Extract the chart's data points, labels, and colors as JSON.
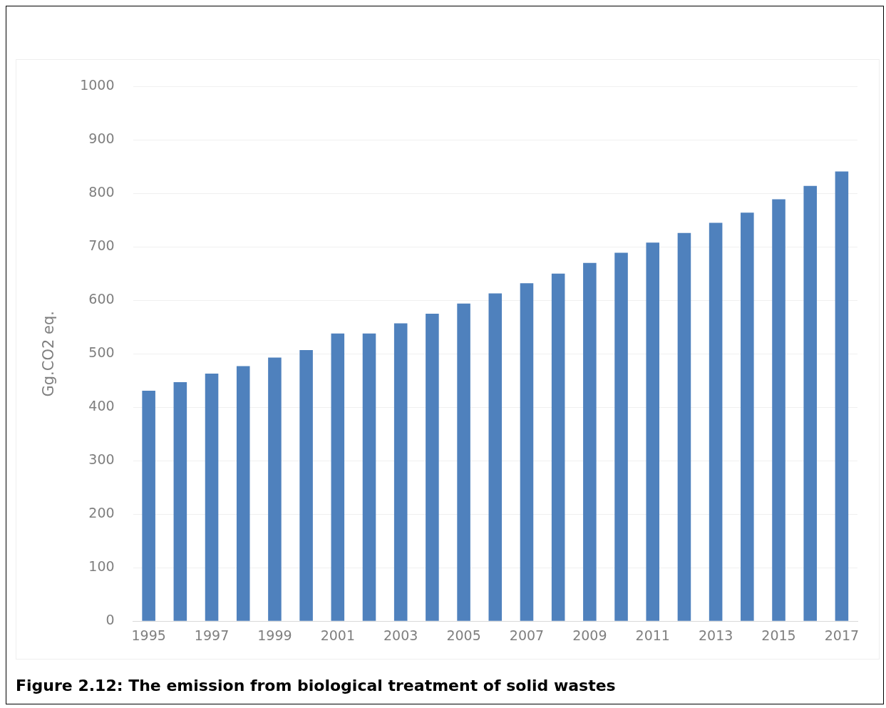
{
  "chart_data": {
    "type": "bar",
    "title": "Figure 2.12: The emission from biological treatment of solid wastes",
    "ylabel": "Gg.CO2 eq.",
    "categories": [
      "1995",
      null,
      "1997",
      null,
      "1999",
      null,
      "2001",
      null,
      "2003",
      null,
      "2005",
      null,
      "2007",
      null,
      "2009",
      null,
      "2011",
      null,
      "2013",
      null,
      "2015",
      null,
      "2017"
    ],
    "values": [
      431,
      447,
      463,
      477,
      493,
      507,
      538,
      538,
      557,
      575,
      594,
      613,
      632,
      650,
      670,
      689,
      708,
      726,
      745,
      764,
      789,
      814,
      841
    ],
    "color": "#4f81bd",
    "ylim": [
      0,
      1000
    ],
    "yticks": [
      0,
      100,
      200,
      300,
      400,
      500,
      600,
      700,
      800,
      900,
      1000
    ],
    "grid": "y"
  }
}
